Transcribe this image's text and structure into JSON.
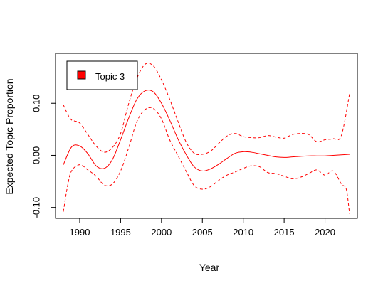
{
  "chart_data": {
    "type": "line",
    "title": "",
    "xlabel": "Year",
    "ylabel": "Expected Topic Proportion",
    "xlim": [
      1988,
      2023
    ],
    "ylim": [
      -0.11,
      0.185
    ],
    "x_ticks": [
      1990,
      1995,
      2000,
      2005,
      2010,
      2015,
      2020
    ],
    "x_tick_labels": [
      "1990",
      "1995",
      "2000",
      "2005",
      "2010",
      "2015",
      "2020"
    ],
    "y_ticks": [
      -0.1,
      0.0,
      0.1
    ],
    "y_tick_labels": [
      "-0.10",
      "0.00",
      "0.10"
    ],
    "legend": {
      "position": "top-left",
      "entries": [
        {
          "label": "Topic 3",
          "color": "#ff0000"
        }
      ]
    },
    "grid": false,
    "series": [
      {
        "name": "Topic 3",
        "color": "#ff0000",
        "style": "solid",
        "x": [
          1988,
          1989,
          1990,
          1991,
          1992,
          1993,
          1994,
          1995,
          1996,
          1997,
          1998,
          1999,
          2000,
          2001,
          2002,
          2003,
          2004,
          2005,
          2006,
          2007,
          2008,
          2009,
          2010,
          2011,
          2012,
          2013,
          2014,
          2015,
          2016,
          2017,
          2018,
          2019,
          2020,
          2021,
          2022,
          2023
        ],
        "values": [
          -0.018,
          0.016,
          0.018,
          0.003,
          -0.02,
          -0.025,
          -0.008,
          0.03,
          0.072,
          0.108,
          0.124,
          0.122,
          0.1,
          0.068,
          0.032,
          0.002,
          -0.022,
          -0.03,
          -0.026,
          -0.017,
          -0.006,
          0.004,
          0.007,
          0.006,
          0.003,
          0.0,
          -0.003,
          -0.004,
          -0.003,
          -0.002,
          -0.001,
          -0.001,
          -0.001,
          0.0,
          0.001,
          0.002
        ]
      },
      {
        "name": "",
        "color": "#ff0000",
        "style": "dashed",
        "x": [
          1988,
          1988.5,
          1989,
          1990,
          1991,
          1992,
          1993,
          1994,
          1995,
          1996,
          1997,
          1998,
          1999,
          2000,
          2001,
          2002,
          2003,
          2004,
          2005,
          2006,
          2007,
          2008,
          2009,
          2010,
          2011,
          2012,
          2013,
          2014,
          2015,
          2016,
          2017,
          2018,
          2019,
          2020,
          2021,
          2022,
          2023
        ],
        "values": [
          0.097,
          0.08,
          0.068,
          0.062,
          0.04,
          0.018,
          0.006,
          0.015,
          0.042,
          0.1,
          0.148,
          0.175,
          0.172,
          0.145,
          0.108,
          0.066,
          0.026,
          0.004,
          0.002,
          0.008,
          0.023,
          0.037,
          0.042,
          0.036,
          0.034,
          0.034,
          0.038,
          0.035,
          0.033,
          0.04,
          0.042,
          0.04,
          0.026,
          0.03,
          0.032,
          0.038,
          0.118
        ]
      },
      {
        "name": "",
        "color": "#ff0000",
        "style": "dashed",
        "x": [
          1988,
          1988.5,
          1989,
          1990,
          1991,
          1992,
          1993,
          1994,
          1995,
          1996,
          1997,
          1998,
          1999,
          2000,
          2001,
          2002,
          2003,
          2004,
          2005,
          2006,
          2007,
          2008,
          2009,
          2010,
          2011,
          2012,
          2013,
          2014,
          2015,
          2016,
          2017,
          2018,
          2019,
          2020,
          2021,
          2022,
          2022.6,
          2023
        ],
        "values": [
          -0.108,
          -0.06,
          -0.03,
          -0.018,
          -0.028,
          -0.04,
          -0.057,
          -0.055,
          -0.03,
          0.015,
          0.065,
          0.088,
          0.09,
          0.07,
          0.03,
          0.0,
          -0.03,
          -0.058,
          -0.065,
          -0.06,
          -0.048,
          -0.038,
          -0.032,
          -0.025,
          -0.02,
          -0.022,
          -0.033,
          -0.035,
          -0.04,
          -0.045,
          -0.042,
          -0.035,
          -0.028,
          -0.038,
          -0.03,
          -0.055,
          -0.065,
          -0.112
        ]
      }
    ]
  }
}
